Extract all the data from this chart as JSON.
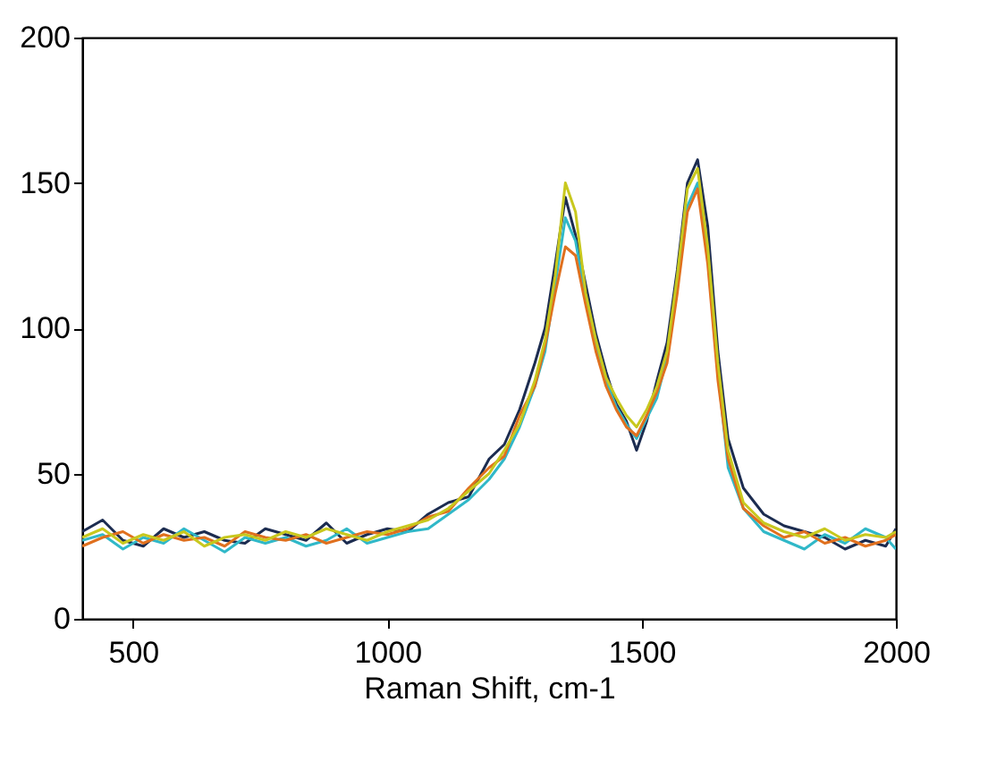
{
  "chart_data": {
    "type": "line",
    "xlabel": "Raman Shift, cm-1",
    "x": [
      400,
      440,
      480,
      520,
      560,
      600,
      640,
      680,
      720,
      760,
      800,
      840,
      880,
      920,
      960,
      1000,
      1040,
      1080,
      1120,
      1160,
      1200,
      1230,
      1260,
      1290,
      1310,
      1330,
      1350,
      1370,
      1390,
      1410,
      1430,
      1450,
      1470,
      1490,
      1510,
      1530,
      1550,
      1570,
      1590,
      1610,
      1630,
      1650,
      1670,
      1700,
      1740,
      1780,
      1820,
      1860,
      1900,
      1940,
      1980,
      2000
    ],
    "series": [
      {
        "color": "#1c2c50",
        "values": [
          30,
          34,
          27,
          25,
          31,
          28,
          30,
          27,
          26,
          31,
          29,
          27,
          33,
          26,
          29,
          31,
          30,
          36,
          40,
          42,
          55,
          60,
          72,
          88,
          100,
          122,
          145,
          132,
          115,
          98,
          85,
          74,
          68,
          58,
          68,
          82,
          95,
          120,
          150,
          158,
          135,
          92,
          62,
          45,
          36,
          32,
          30,
          28,
          24,
          27,
          25,
          31
        ]
      },
      {
        "color": "#30b8c8",
        "values": [
          27,
          29,
          24,
          28,
          26,
          31,
          27,
          23,
          28,
          26,
          28,
          25,
          27,
          31,
          26,
          28,
          30,
          31,
          36,
          41,
          48,
          55,
          66,
          80,
          92,
          115,
          138,
          130,
          110,
          94,
          82,
          73,
          67,
          62,
          69,
          76,
          90,
          114,
          142,
          150,
          125,
          85,
          52,
          38,
          30,
          27,
          24,
          29,
          26,
          31,
          28,
          24
        ]
      },
      {
        "color": "#e0701e",
        "values": [
          25,
          28,
          30,
          26,
          29,
          27,
          28,
          25,
          30,
          28,
          27,
          29,
          26,
          28,
          30,
          29,
          31,
          35,
          37,
          45,
          52,
          56,
          70,
          80,
          94,
          112,
          128,
          125,
          108,
          92,
          80,
          72,
          66,
          63,
          70,
          78,
          88,
          112,
          140,
          148,
          122,
          82,
          55,
          38,
          32,
          28,
          30,
          26,
          28,
          25,
          27,
          29
        ]
      },
      {
        "color": "#c8c81e",
        "values": [
          28,
          31,
          26,
          29,
          27,
          30,
          25,
          28,
          29,
          27,
          30,
          28,
          31,
          29,
          27,
          30,
          32,
          34,
          38,
          44,
          50,
          58,
          67,
          82,
          96,
          118,
          150,
          140,
          112,
          96,
          83,
          76,
          70,
          66,
          72,
          80,
          92,
          118,
          148,
          155,
          128,
          88,
          58,
          40,
          33,
          30,
          28,
          31,
          27,
          29,
          28,
          30
        ]
      }
    ],
    "xlim": [
      400,
      2000
    ],
    "ylim": [
      0,
      200
    ],
    "xticks": [
      500,
      1000,
      1500,
      2000
    ],
    "yticks": [
      0,
      50,
      100,
      150,
      200
    ],
    "grid": false,
    "marker": "none",
    "line_style": "solid"
  }
}
